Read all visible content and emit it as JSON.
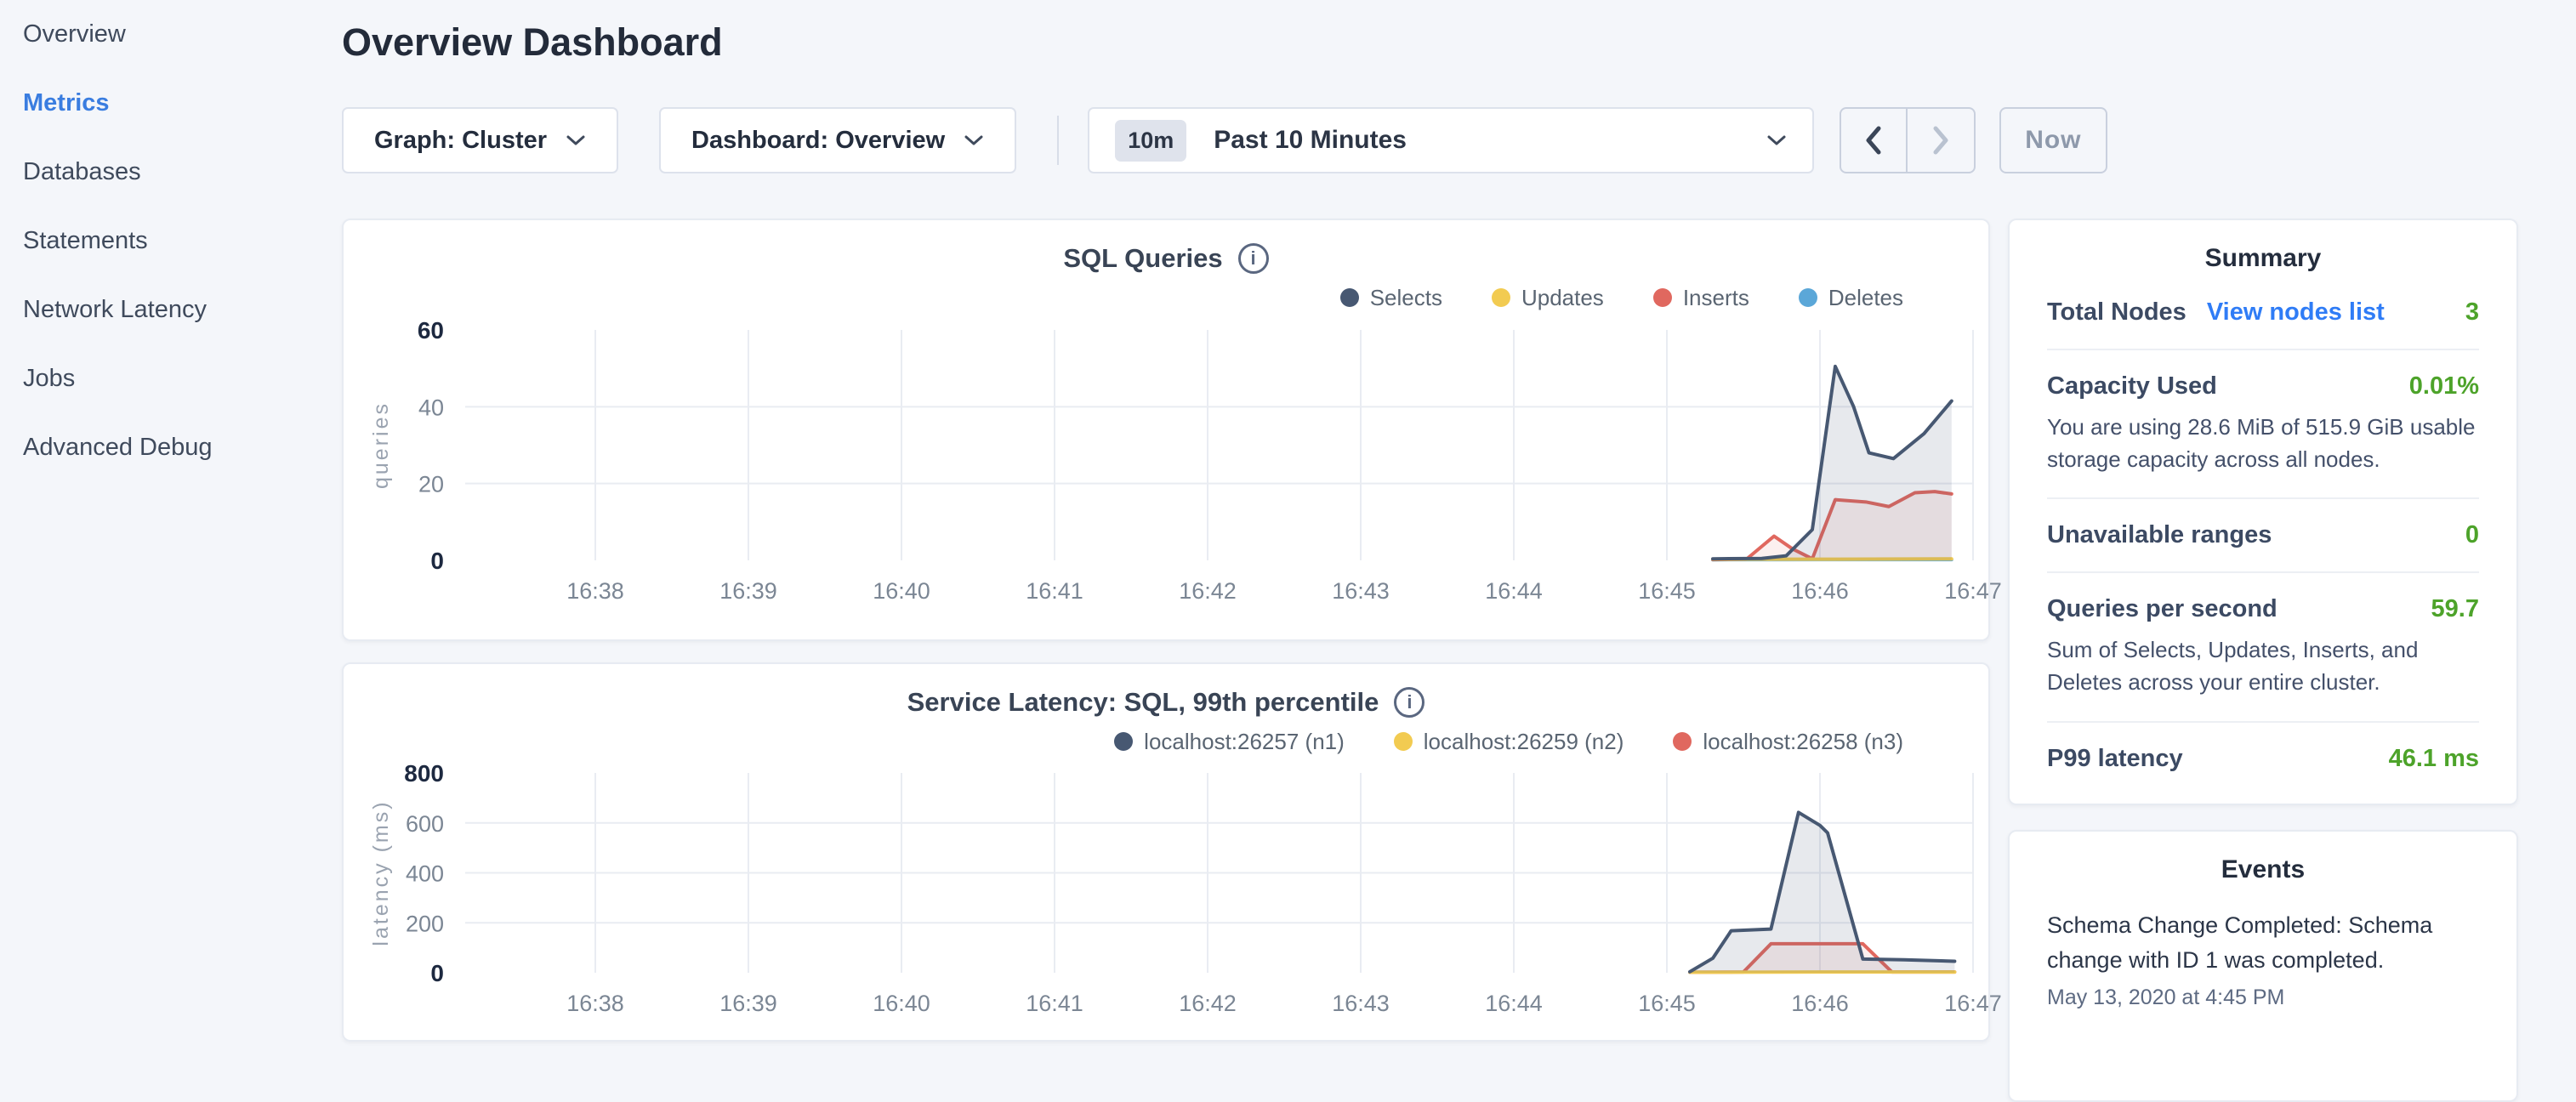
{
  "sidebar": {
    "items": [
      {
        "label": "Overview",
        "active": false
      },
      {
        "label": "Metrics",
        "active": true
      },
      {
        "label": "Databases",
        "active": false
      },
      {
        "label": "Statements",
        "active": false
      },
      {
        "label": "Network Latency",
        "active": false
      },
      {
        "label": "Jobs",
        "active": false
      },
      {
        "label": "Advanced Debug",
        "active": false
      }
    ]
  },
  "header": {
    "title": "Overview Dashboard"
  },
  "controls": {
    "graph_dropdown": "Graph: Cluster",
    "dashboard_dropdown": "Dashboard: Overview",
    "time_badge": "10m",
    "time_label": "Past 10 Minutes",
    "now_label": "Now"
  },
  "icons": {
    "info": "i"
  },
  "colors": {
    "sidebar_active_blue": "#3a7de0",
    "link_blue": "#2f7cf6",
    "status_green": "#4da32a",
    "series_navy": "#475872",
    "series_yellow": "#f2cb51",
    "series_red": "#e0685f",
    "series_blue": "#5ba7d8",
    "grid": "#e9ecf2"
  },
  "chart_data": [
    {
      "type": "line",
      "title": "SQL Queries",
      "ylabel": "queries",
      "ylim": [
        0,
        60
      ],
      "yticks": [
        0,
        20,
        40,
        60
      ],
      "x_ticks": [
        "16:38",
        "16:39",
        "16:40",
        "16:41",
        "16:42",
        "16:43",
        "16:44",
        "16:45",
        "16:46",
        "16:47"
      ],
      "x_tick_minutes": [
        38,
        39,
        40,
        41,
        42,
        43,
        44,
        45,
        46,
        47
      ],
      "x_domain_minutes": [
        37.15,
        47.0
      ],
      "grid": true,
      "legend_position": "top-right",
      "series": [
        {
          "name": "Selects",
          "color": "#475872",
          "fill": "rgba(71,88,114,0.13)",
          "points": [
            [
              45.3,
              0.4
            ],
            [
              45.62,
              0.5
            ],
            [
              45.78,
              1.2
            ],
            [
              45.95,
              8
            ],
            [
              46.1,
              50.5
            ],
            [
              46.22,
              40
            ],
            [
              46.32,
              28
            ],
            [
              46.48,
              26.5
            ],
            [
              46.68,
              33
            ],
            [
              46.86,
              41.5
            ]
          ]
        },
        {
          "name": "Updates",
          "color": "#f2cb51",
          "fill": "none",
          "points": [
            [
              45.3,
              0.3
            ],
            [
              46.0,
              0.3
            ],
            [
              46.86,
              0.4
            ]
          ]
        },
        {
          "name": "Inserts",
          "color": "#e0685f",
          "fill": "rgba(224,104,95,0.10)",
          "points": [
            [
              45.3,
              0.2
            ],
            [
              45.52,
              0.3
            ],
            [
              45.7,
              6.3
            ],
            [
              45.82,
              3
            ],
            [
              45.95,
              0.4
            ],
            [
              46.1,
              15.8
            ],
            [
              46.3,
              15.2
            ],
            [
              46.45,
              14
            ],
            [
              46.62,
              17.6
            ],
            [
              46.75,
              17.9
            ],
            [
              46.86,
              17.3
            ]
          ]
        },
        {
          "name": "Deletes",
          "color": "#5ba7d8",
          "fill": "none",
          "points": [
            [
              45.3,
              0.15
            ],
            [
              46.0,
              0.2
            ],
            [
              46.86,
              0.2
            ]
          ]
        }
      ]
    },
    {
      "type": "line",
      "title": "Service Latency: SQL, 99th percentile",
      "ylabel": "latency (ms)",
      "ylim": [
        0,
        800
      ],
      "yticks": [
        0,
        200,
        400,
        600,
        800
      ],
      "x_ticks": [
        "16:38",
        "16:39",
        "16:40",
        "16:41",
        "16:42",
        "16:43",
        "16:44",
        "16:45",
        "16:46",
        "16:47"
      ],
      "x_tick_minutes": [
        38,
        39,
        40,
        41,
        42,
        43,
        44,
        45,
        46,
        47
      ],
      "x_domain_minutes": [
        37.15,
        47.0
      ],
      "grid": true,
      "legend_position": "top-right",
      "series": [
        {
          "name": "localhost:26257 (n1)",
          "color": "#475872",
          "fill": "rgba(71,88,114,0.13)",
          "points": [
            [
              45.15,
              4
            ],
            [
              45.3,
              58
            ],
            [
              45.42,
              168
            ],
            [
              45.68,
              175
            ],
            [
              45.86,
              642
            ],
            [
              46.0,
              590
            ],
            [
              46.05,
              560
            ],
            [
              46.28,
              55
            ],
            [
              46.55,
              52
            ],
            [
              46.88,
              46
            ]
          ]
        },
        {
          "name": "localhost:26259 (n2)",
          "color": "#f2cb51",
          "fill": "none",
          "points": [
            [
              45.15,
              2
            ],
            [
              46.0,
              3
            ],
            [
              46.88,
              3
            ]
          ]
        },
        {
          "name": "localhost:26258 (n3)",
          "color": "#e0685f",
          "fill": "rgba(224,104,95,0.10)",
          "points": [
            [
              45.15,
              2
            ],
            [
              45.5,
              3
            ],
            [
              45.68,
              116
            ],
            [
              46.28,
              116
            ],
            [
              46.47,
              3
            ],
            [
              46.88,
              3
            ]
          ]
        }
      ]
    }
  ],
  "summary": {
    "title": "Summary",
    "rows": [
      {
        "label": "Total Nodes",
        "link": "View nodes list",
        "value": "3"
      },
      {
        "label": "Capacity Used",
        "value": "0.01%",
        "desc": "You are using 28.6 MiB of 515.9 GiB usable storage capacity across all nodes."
      },
      {
        "label": "Unavailable ranges",
        "value": "0"
      },
      {
        "label": "Queries per second",
        "value": "59.7",
        "desc": "Sum of Selects, Updates, Inserts, and Deletes across your entire cluster."
      },
      {
        "label": "P99 latency",
        "value": "46.1 ms"
      }
    ]
  },
  "events": {
    "title": "Events",
    "items": [
      {
        "message": "Schema Change Completed: Schema change with ID 1 was completed.",
        "timestamp": "May 13, 2020 at 4:45 PM"
      }
    ]
  }
}
